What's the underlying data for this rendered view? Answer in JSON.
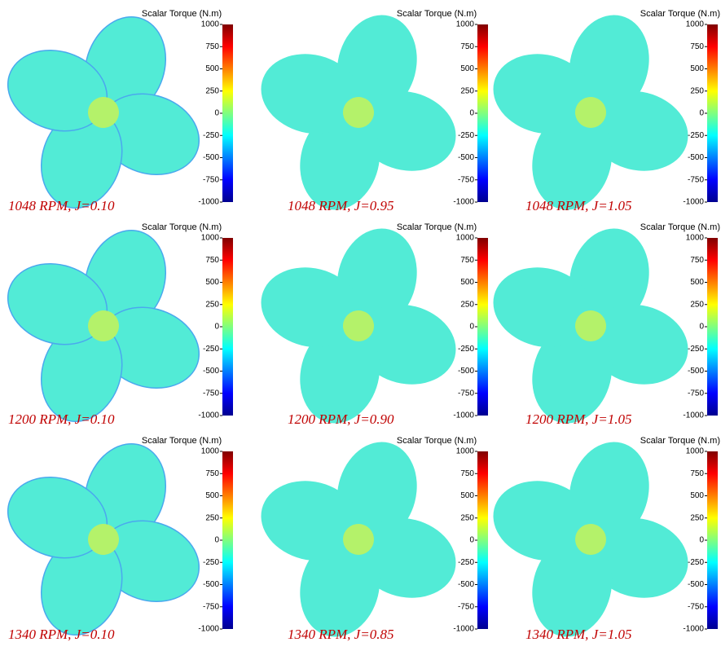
{
  "panels": [
    {
      "title": "Scalar Torque (N.m)",
      "caption": "1048 RPM, J=0.10",
      "ticks": [
        1000,
        750,
        500,
        250,
        0,
        -250,
        -500,
        -750,
        -1000
      ]
    },
    {
      "title": "Scalar Torque (N.m)",
      "caption": "1048 RPM, J=0.95",
      "ticks": [
        1000,
        750,
        500,
        250,
        0,
        -250,
        -500,
        -750,
        -1000
      ]
    },
    {
      "title": "Scalar Torque (N.m)",
      "caption": "1048 RPM, J=1.05",
      "ticks": [
        1000,
        750,
        500,
        250,
        0,
        -250,
        -500,
        -750,
        -1000
      ]
    },
    {
      "title": "Scalar Torque (N.m)",
      "caption": "1200 RPM, J=0.10",
      "ticks": [
        1000,
        750,
        500,
        250,
        0,
        -250,
        -500,
        -750,
        -1000
      ]
    },
    {
      "title": "Scalar Torque (N.m)",
      "caption": "1200 RPM, J=0.90",
      "ticks": [
        1000,
        750,
        500,
        250,
        0,
        -250,
        -500,
        -750,
        -1000
      ]
    },
    {
      "title": "Scalar Torque (N.m)",
      "caption": "1200 RPM, J=1.05",
      "ticks": [
        1000,
        750,
        500,
        250,
        0,
        -250,
        -500,
        -750,
        -1000
      ]
    },
    {
      "title": "Scalar Torque (N.m)",
      "caption": "1340 RPM, J=0.10",
      "ticks": [
        1000,
        750,
        500,
        250,
        0,
        -250,
        -500,
        -750,
        -1000
      ]
    },
    {
      "title": "Scalar Torque (N.m)",
      "caption": "1340 RPM, J=0.85",
      "ticks": [
        1000,
        750,
        500,
        250,
        0,
        -250,
        -500,
        -750,
        -1000
      ]
    },
    {
      "title": "Scalar Torque (N.m)",
      "caption": "1340 RPM, J=1.05",
      "ticks": [
        1000,
        750,
        500,
        250,
        0,
        -250,
        -500,
        -750,
        -1000
      ]
    }
  ]
}
